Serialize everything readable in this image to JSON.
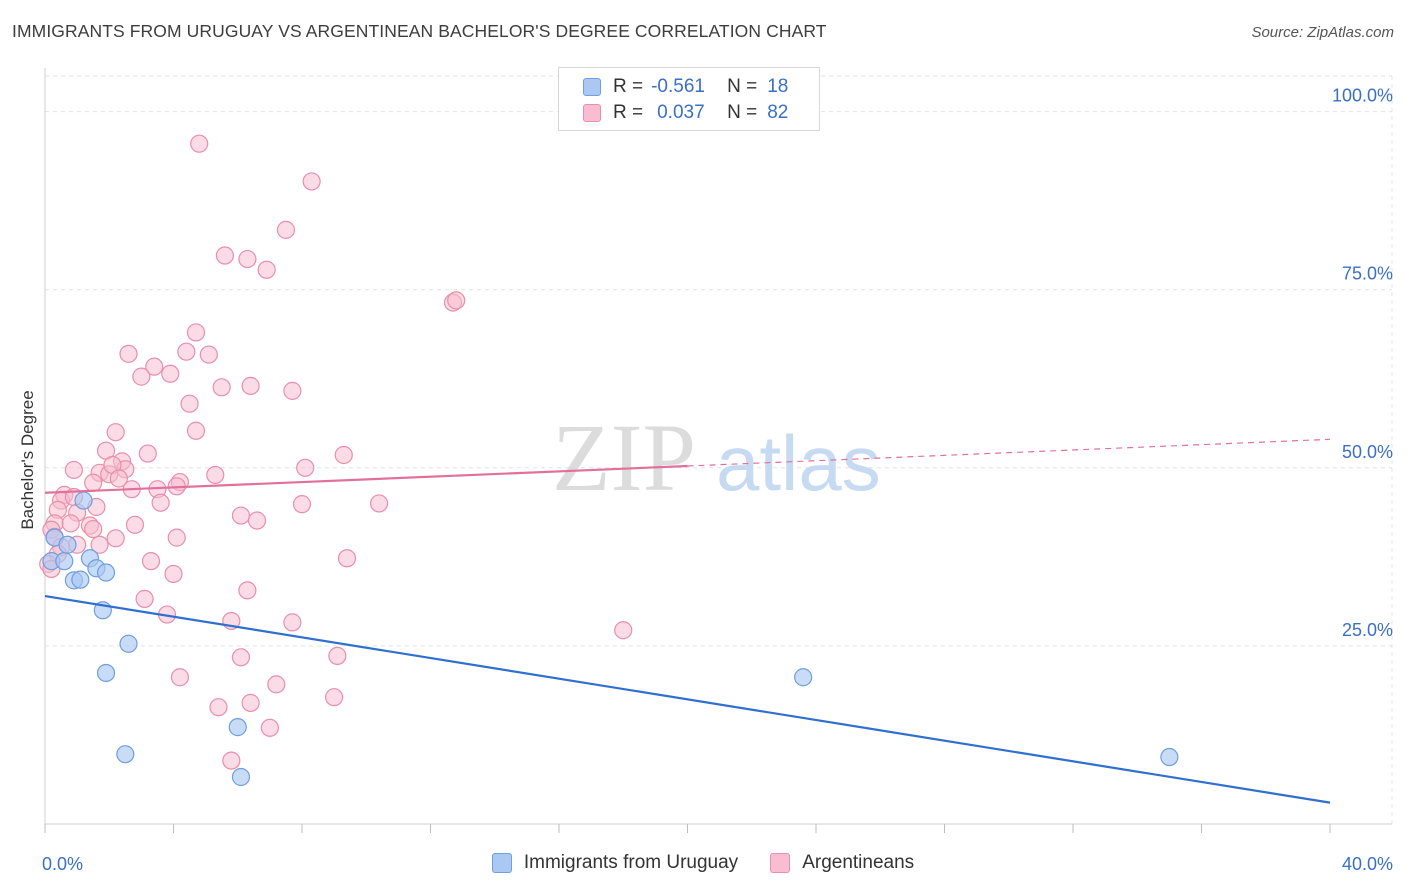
{
  "header": {
    "title": "IMMIGRANTS FROM URUGUAY VS ARGENTINEAN BACHELOR'S DEGREE CORRELATION CHART",
    "source": "Source: ZipAtlas.com"
  },
  "watermark": {
    "zip": "ZIP",
    "atlas": "atlas"
  },
  "legend_top": {
    "rows": [
      {
        "r_label": "R =",
        "r_value": "-0.561",
        "n_label": "N =",
        "n_value": "18"
      },
      {
        "r_label": "R =",
        "r_value": "0.037",
        "n_label": "N =",
        "n_value": "82"
      }
    ]
  },
  "legend_bottom": {
    "items": [
      "Immigrants from Uruguay",
      "Argentineans"
    ]
  },
  "colors": {
    "blue_fill": "#aac8f2",
    "blue_stroke": "#6f9fe0",
    "blue_line": "#2f6fd0",
    "pink_fill": "#f8bdd0",
    "pink_stroke": "#e98fab",
    "pink_line": "#e2709a",
    "tick_label": "#3a6fc8",
    "grid": "#e2e2e2"
  },
  "chart_data": {
    "type": "scatter",
    "title": "IMMIGRANTS FROM URUGUAY VS ARGENTINEAN BACHELOR'S DEGREE CORRELATION CHART",
    "xlabel": "",
    "ylabel": "Bachelor's Degree",
    "xlim": [
      0,
      40
    ],
    "ylim": [
      0,
      105
    ],
    "x_tick_labels": [
      "0.0%",
      "40.0%"
    ],
    "y_ticks": [
      25,
      50,
      75,
      100
    ],
    "y_tick_labels": [
      "25.0%",
      "50.0%",
      "75.0%",
      "100.0%"
    ],
    "grid": true,
    "legend_placement": "top-center",
    "series": [
      {
        "name": "Immigrants from Uruguay",
        "color": "#aac8f2",
        "points": [
          [
            0.2,
            36.9
          ],
          [
            0.3,
            40.2
          ],
          [
            0.6,
            36.9
          ],
          [
            0.7,
            39.2
          ],
          [
            1.2,
            45.4
          ],
          [
            1.4,
            37.3
          ],
          [
            1.6,
            35.9
          ],
          [
            0.9,
            34.2
          ],
          [
            1.9,
            35.3
          ],
          [
            1.8,
            30.0
          ],
          [
            2.6,
            25.3
          ],
          [
            1.9,
            21.2
          ],
          [
            2.5,
            9.8
          ],
          [
            6.0,
            13.6
          ],
          [
            6.1,
            6.6
          ],
          [
            23.6,
            20.6
          ],
          [
            35.0,
            9.4
          ],
          [
            1.1,
            34.3
          ]
        ],
        "trend": {
          "x0": 0,
          "y0": 32.0,
          "x1": 40,
          "y1": 3.0
        }
      },
      {
        "name": "Argentineans",
        "color": "#f8bdd0",
        "points": [
          [
            4.8,
            95.5
          ],
          [
            8.3,
            90.2
          ],
          [
            7.5,
            83.4
          ],
          [
            5.6,
            79.8
          ],
          [
            6.3,
            79.3
          ],
          [
            6.9,
            77.8
          ],
          [
            12.7,
            73.2
          ],
          [
            12.8,
            73.5
          ],
          [
            4.7,
            69.0
          ],
          [
            2.6,
            66.0
          ],
          [
            4.4,
            66.3
          ],
          [
            5.1,
            65.9
          ],
          [
            3.4,
            64.2
          ],
          [
            3.9,
            63.2
          ],
          [
            3.0,
            62.8
          ],
          [
            5.5,
            61.3
          ],
          [
            6.4,
            61.5
          ],
          [
            7.7,
            60.8
          ],
          [
            4.5,
            59.0
          ],
          [
            4.7,
            55.2
          ],
          [
            2.2,
            55.0
          ],
          [
            1.9,
            52.4
          ],
          [
            3.2,
            52.0
          ],
          [
            9.3,
            51.8
          ],
          [
            0.9,
            49.7
          ],
          [
            1.7,
            49.3
          ],
          [
            2.0,
            49.1
          ],
          [
            2.4,
            50.9
          ],
          [
            2.5,
            49.8
          ],
          [
            2.1,
            50.4
          ],
          [
            5.3,
            49.0
          ],
          [
            8.1,
            50.0
          ],
          [
            4.2,
            48.0
          ],
          [
            1.5,
            47.9
          ],
          [
            2.3,
            48.5
          ],
          [
            2.7,
            47.0
          ],
          [
            3.5,
            47.0
          ],
          [
            4.1,
            47.4
          ],
          [
            0.6,
            46.2
          ],
          [
            0.5,
            45.4
          ],
          [
            0.9,
            45.9
          ],
          [
            3.6,
            45.1
          ],
          [
            8.0,
            44.9
          ],
          [
            10.4,
            45.0
          ],
          [
            0.4,
            44.1
          ],
          [
            1.6,
            44.5
          ],
          [
            1.0,
            43.7
          ],
          [
            6.1,
            43.3
          ],
          [
            6.6,
            42.6
          ],
          [
            0.3,
            42.2
          ],
          [
            0.8,
            42.2
          ],
          [
            1.4,
            41.9
          ],
          [
            1.5,
            41.4
          ],
          [
            2.8,
            42.0
          ],
          [
            4.1,
            40.2
          ],
          [
            2.2,
            40.1
          ],
          [
            1.7,
            39.2
          ],
          [
            1.0,
            39.2
          ],
          [
            0.2,
            41.3
          ],
          [
            0.3,
            40.3
          ],
          [
            0.5,
            38.9
          ],
          [
            0.4,
            37.9
          ],
          [
            9.4,
            37.3
          ],
          [
            3.3,
            36.9
          ],
          [
            0.1,
            36.5
          ],
          [
            0.2,
            35.8
          ],
          [
            4.0,
            35.1
          ],
          [
            6.3,
            32.8
          ],
          [
            3.1,
            31.6
          ],
          [
            3.8,
            29.4
          ],
          [
            5.8,
            28.5
          ],
          [
            7.7,
            28.3
          ],
          [
            18.0,
            27.2
          ],
          [
            6.1,
            23.4
          ],
          [
            9.1,
            23.6
          ],
          [
            4.2,
            20.6
          ],
          [
            7.2,
            19.6
          ],
          [
            9.0,
            17.8
          ],
          [
            5.4,
            16.4
          ],
          [
            6.4,
            17.0
          ],
          [
            7.0,
            13.5
          ],
          [
            5.8,
            8.9
          ]
        ],
        "trend": {
          "x0": 0,
          "y0": 46.5,
          "x1": 40,
          "y1": 54.0,
          "solid_until_x": 20
        }
      }
    ]
  }
}
